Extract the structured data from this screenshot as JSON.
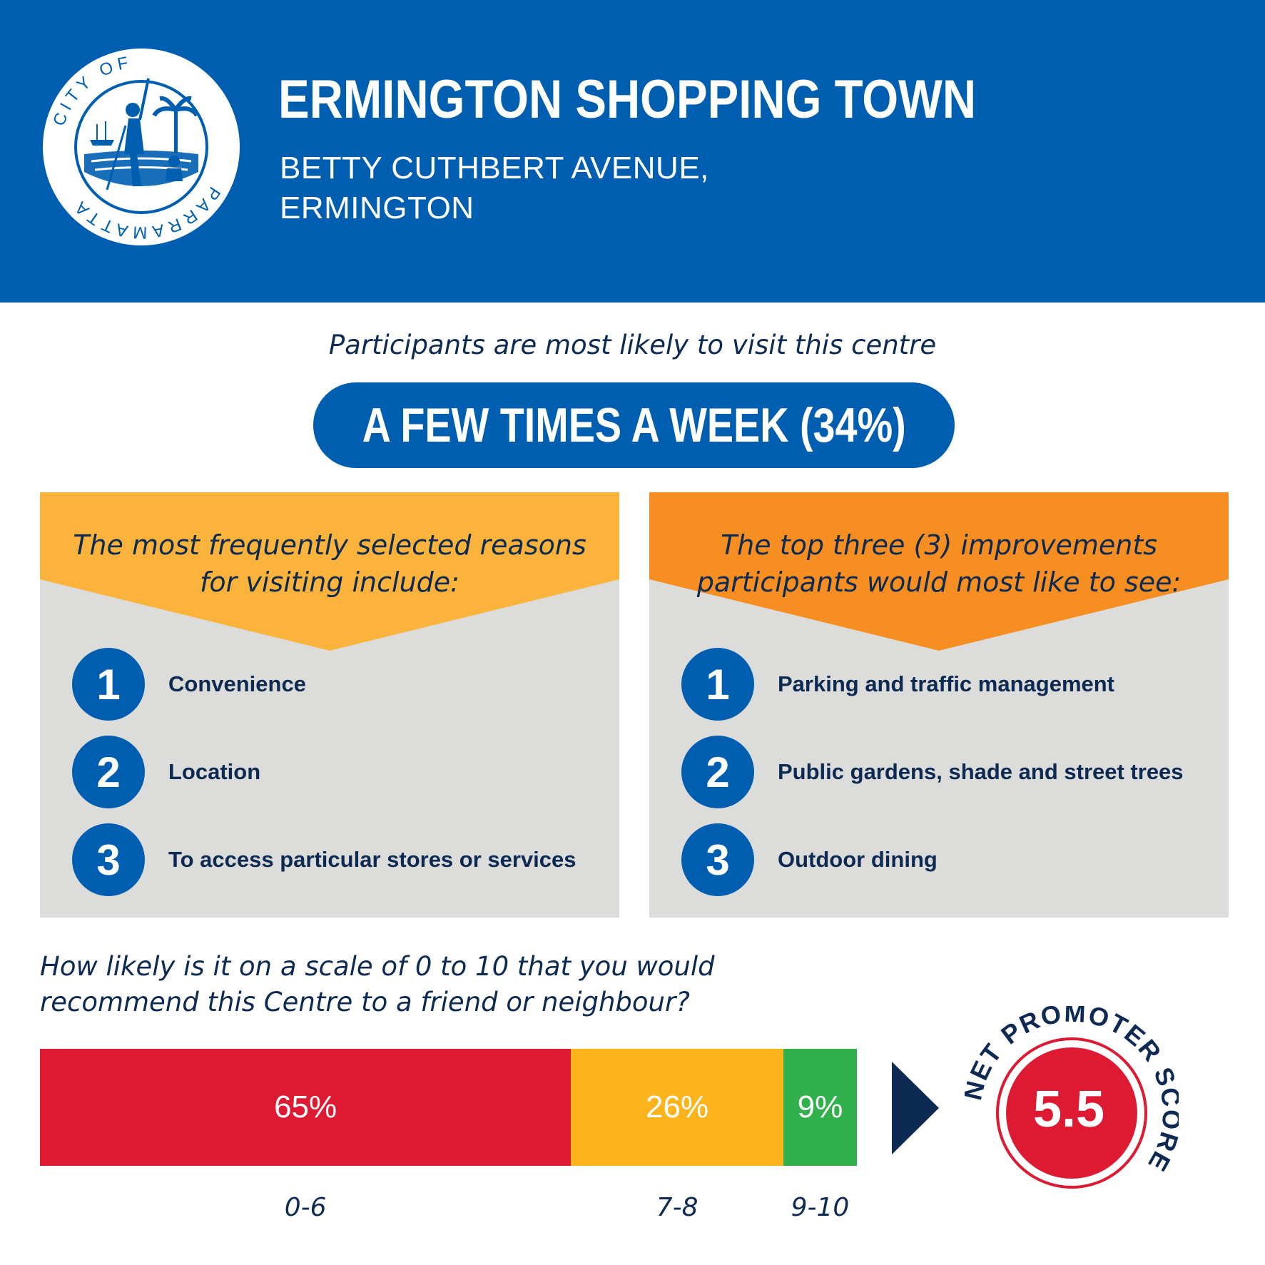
{
  "logo": {
    "ring_text": "CITY OF PARRAMATTA"
  },
  "header": {
    "title": "ERMINGTON SHOPPING TOWN",
    "address_line1": "BETTY CUTHBERT AVENUE,",
    "address_line2": "ERMINGTON"
  },
  "visit": {
    "intro": "Participants are most likely to visit this centre",
    "frequency": "A FEW TIMES A WEEK (34%)"
  },
  "reasons": {
    "heading": "The most frequently selected reasons for visiting include:",
    "items": [
      {
        "rank": "1",
        "label": "Convenience"
      },
      {
        "rank": "2",
        "label": "Location"
      },
      {
        "rank": "3",
        "label": "To access particular stores or services"
      }
    ]
  },
  "improvements": {
    "heading": "The top three (3) improvements participants would most like to see:",
    "items": [
      {
        "rank": "1",
        "label": "Parking and traffic management"
      },
      {
        "rank": "2",
        "label": "Public gardens, shade and street trees"
      },
      {
        "rank": "3",
        "label": "Outdoor dining"
      }
    ]
  },
  "nps": {
    "question": "How likely is it on a scale of 0 to 10 that you would recommend this Centre to a friend or neighbour?",
    "badge_label": "NET PROMOTER SCORE",
    "score": "5.5"
  },
  "chart_data": {
    "type": "bar",
    "orientation": "horizontal-stacked",
    "categories": [
      "0-6",
      "7-8",
      "9-10"
    ],
    "values": [
      65,
      26,
      9
    ],
    "value_labels": [
      "65%",
      "26%",
      "9%"
    ],
    "colors": [
      "#dd1a32",
      "#fbb41b",
      "#31b14b"
    ],
    "unit": "%"
  },
  "colors": {
    "brand_blue": "#005eb1",
    "navy": "#0d2a52",
    "panel_grey": "#dcdcdb",
    "yellow": "#fbb33b",
    "orange": "#f68e22",
    "red": "#dd1a32"
  }
}
